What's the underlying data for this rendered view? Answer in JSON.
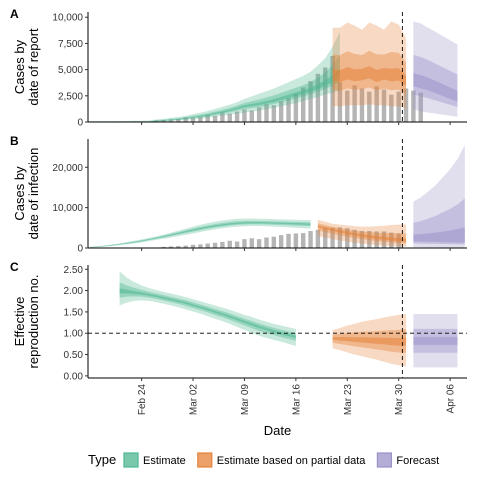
{
  "chart_data": [
    {
      "panel": "A",
      "type": "area",
      "ylabel": [
        "Cases by",
        "date of report"
      ],
      "ylim": [
        0,
        10500
      ],
      "yticks": [
        0,
        2500,
        5000,
        7500,
        10000
      ],
      "ytick_labels": [
        "0",
        "2,500",
        "5,000",
        "7,500",
        "10,000"
      ],
      "x_range": [
        "2020-02-17",
        "2020-04-08"
      ],
      "reported_bars": {
        "x_start": "2020-02-26",
        "values": [
          150,
          200,
          250,
          300,
          450,
          400,
          500,
          700,
          600,
          900,
          800,
          1000,
          1200,
          1100,
          1400,
          1700,
          1600,
          2000,
          2300,
          2700,
          3300,
          3900,
          4600,
          5200,
          6300,
          3800,
          3000,
          3500,
          3200,
          2900,
          3400,
          3100,
          2600,
          2900,
          3200,
          3000,
          2800
        ]
      },
      "series": [
        {
          "name": "Estimate",
          "x_start": "2020-02-17",
          "median": [
            0,
            0,
            0,
            0,
            0,
            0,
            0,
            0,
            0,
            100,
            150,
            200,
            250,
            350,
            450,
            550,
            650,
            800,
            950,
            1100,
            1300,
            1500,
            1600,
            1700,
            1850,
            2000,
            2200,
            2400,
            2600,
            2800,
            3000,
            3300,
            3600,
            4000,
            4500
          ],
          "lower90": [
            0,
            0,
            0,
            0,
            0,
            0,
            0,
            0,
            0,
            30,
            60,
            100,
            150,
            200,
            260,
            320,
            400,
            500,
            600,
            700,
            800,
            900,
            1000,
            1100,
            1200,
            1350,
            1500,
            1650,
            1800,
            2000,
            2200,
            2400,
            2600,
            2800,
            3000
          ],
          "upper90": [
            80,
            80,
            80,
            80,
            100,
            100,
            120,
            120,
            140,
            250,
            300,
            400,
            480,
            600,
            750,
            900,
            1050,
            1250,
            1450,
            1650,
            1900,
            2200,
            2450,
            2700,
            2950,
            3200,
            3500,
            3800,
            4100,
            4400,
            4800,
            5400,
            6100,
            7200,
            8600
          ]
        },
        {
          "name": "Estimate based on partial data",
          "x_start": "2020-03-21",
          "median": [
            4400,
            4200,
            4500,
            4300,
            4400,
            4600,
            4200,
            4500,
            4300,
            4400,
            3800
          ],
          "lower90": [
            1500,
            1500,
            1600,
            1600,
            1600,
            1700,
            1600,
            1600,
            1500,
            1500,
            1300
          ],
          "upper90": [
            9000,
            9000,
            9500,
            9200,
            8800,
            9500,
            9200,
            8800,
            9600,
            9300,
            8000
          ]
        },
        {
          "name": "Forecast",
          "x_start": "2020-04-01",
          "median": [
            3800,
            3600,
            3400,
            3100,
            2800,
            2500,
            2200
          ],
          "lower90": [
            1200,
            1000,
            900,
            800,
            700,
            600,
            500
          ],
          "upper90": [
            9600,
            9400,
            9000,
            8600,
            8200,
            7800,
            7400
          ]
        }
      ]
    },
    {
      "panel": "B",
      "type": "area",
      "ylabel": [
        "Cases by",
        "date of infection"
      ],
      "ylim": [
        0,
        27000
      ],
      "yticks": [
        0,
        10000,
        20000
      ],
      "ytick_labels": [
        "0",
        "10,000",
        "20,000"
      ],
      "x_range": [
        "2020-02-17",
        "2020-04-08"
      ],
      "reported_bars": {
        "x_start": "2020-02-27",
        "values": [
          300,
          400,
          500,
          600,
          800,
          900,
          1100,
          1300,
          1500,
          1800,
          1600,
          2200,
          2400,
          2200,
          2600,
          2800,
          3200,
          3500,
          3600,
          3700,
          4200,
          4500,
          5000,
          5000,
          5100,
          4900,
          4500,
          4200,
          4200,
          4100,
          4100,
          3800,
          3600
        ]
      },
      "series": [
        {
          "name": "Estimate",
          "x_start": "2020-02-17",
          "median": [
            200,
            300,
            500,
            700,
            900,
            1150,
            1450,
            1750,
            2100,
            2450,
            2850,
            3250,
            3650,
            4050,
            4450,
            4800,
            5150,
            5450,
            5700,
            5950,
            6100,
            6200,
            6250,
            6250,
            6200,
            6150,
            6100,
            6050,
            6000,
            5950,
            5900
          ],
          "lower90": [
            120,
            200,
            350,
            500,
            700,
            900,
            1150,
            1400,
            1700,
            2000,
            2300,
            2600,
            2950,
            3250,
            3600,
            3950,
            4300,
            4600,
            4900,
            5100,
            5300,
            5400,
            5450,
            5450,
            5400,
            5300,
            5200,
            5100,
            5000,
            4900,
            4800
          ],
          "upper90": [
            300,
            450,
            650,
            900,
            1150,
            1450,
            1800,
            2150,
            2500,
            2900,
            3350,
            3800,
            4300,
            4800,
            5300,
            5750,
            6150,
            6500,
            6800,
            7050,
            7200,
            7300,
            7300,
            7250,
            7200,
            7150,
            7100,
            7050,
            7000,
            6950,
            6900
          ]
        },
        {
          "name": "Estimate based on partial data",
          "x_start": "2020-03-19",
          "median": [
            5400,
            5000,
            4600,
            4200,
            3800,
            3400,
            3100,
            2800,
            2500,
            2300,
            2100,
            1900,
            1700
          ],
          "lower90": [
            3000,
            2600,
            2200,
            1900,
            1600,
            1300,
            1100,
            900,
            750,
            600,
            500,
            400,
            300
          ],
          "upper90": [
            7000,
            6500,
            6000,
            5800,
            5600,
            5400,
            5300,
            5300,
            5400,
            5500,
            5700,
            5800,
            5800
          ]
        },
        {
          "name": "Forecast",
          "x_start": "2020-04-01",
          "median": [
            1900,
            1850,
            1800,
            1750,
            1700,
            1650,
            1600,
            1550
          ],
          "lower90": [
            200,
            180,
            160,
            140,
            120,
            100,
            90,
            80
          ],
          "upper90": [
            11500,
            12500,
            14000,
            15500,
            17500,
            19500,
            22000,
            25500
          ]
        }
      ]
    },
    {
      "panel": "C",
      "type": "area",
      "ylabel": [
        "Effective",
        "reproduction no."
      ],
      "ylim": [
        -0.05,
        2.6
      ],
      "yticks": [
        0.0,
        0.5,
        1.0,
        1.5,
        2.0,
        2.5
      ],
      "ytick_labels": [
        "0.00",
        "0.50",
        "1.00",
        "1.50",
        "2.00",
        "2.50"
      ],
      "hline": 1.0,
      "x_range": [
        "2020-02-17",
        "2020-04-08"
      ],
      "series": [
        {
          "name": "Estimate",
          "x_start": "2020-02-21",
          "median": [
            1.98,
            1.97,
            1.95,
            1.93,
            1.9,
            1.87,
            1.83,
            1.79,
            1.75,
            1.71,
            1.66,
            1.61,
            1.56,
            1.5,
            1.45,
            1.39,
            1.33,
            1.27,
            1.21,
            1.15,
            1.1,
            1.05,
            1.0,
            0.96,
            0.92
          ],
          "lower90": [
            1.65,
            1.72,
            1.76,
            1.77,
            1.76,
            1.73,
            1.69,
            1.65,
            1.61,
            1.56,
            1.51,
            1.46,
            1.4,
            1.34,
            1.28,
            1.22,
            1.15,
            1.08,
            1.01,
            0.94,
            0.89,
            0.84,
            0.8,
            0.75,
            0.7
          ],
          "upper90": [
            2.45,
            2.3,
            2.2,
            2.12,
            2.06,
            2.01,
            1.97,
            1.93,
            1.89,
            1.85,
            1.8,
            1.75,
            1.7,
            1.65,
            1.6,
            1.55,
            1.49,
            1.43,
            1.38,
            1.32,
            1.27,
            1.22,
            1.18,
            1.14,
            1.1
          ]
        },
        {
          "name": "Estimate based on partial data",
          "x_start": "2020-03-21",
          "median": [
            0.88,
            0.87,
            0.86,
            0.85,
            0.84,
            0.83,
            0.82,
            0.81,
            0.8,
            0.79,
            0.8
          ],
          "lower90": [
            0.65,
            0.6,
            0.55,
            0.5,
            0.46,
            0.42,
            0.38,
            0.33,
            0.28,
            0.25,
            0.22
          ],
          "upper90": [
            1.08,
            1.12,
            1.18,
            1.22,
            1.27,
            1.3,
            1.33,
            1.37,
            1.4,
            1.43,
            1.45
          ]
        },
        {
          "name": "Forecast",
          "x_start": "2020-04-01",
          "median": [
            0.82,
            0.82,
            0.82,
            0.82,
            0.82,
            0.82,
            0.82
          ],
          "lower90": [
            0.2,
            0.2,
            0.2,
            0.2,
            0.2,
            0.2,
            0.2
          ],
          "upper90": [
            1.45,
            1.45,
            1.45,
            1.45,
            1.45,
            1.45,
            1.45
          ]
        }
      ]
    }
  ],
  "shared": {
    "x_axis_label": "Date",
    "x_tick_labels": [
      "Feb 24",
      "Mar 02",
      "Mar 09",
      "Mar 16",
      "Mar 23",
      "Mar 30",
      "Apr 06"
    ],
    "x_tick_dates": [
      "2020-02-24",
      "2020-03-02",
      "2020-03-09",
      "2020-03-16",
      "2020-03-23",
      "2020-03-30",
      "2020-04-06"
    ],
    "forecast_start_line": "2020-03-31"
  },
  "legend": {
    "title": "Type",
    "items": [
      {
        "label": "Estimate",
        "color": "#4db690"
      },
      {
        "label": "Estimate based on partial data",
        "color": "#e6823a"
      },
      {
        "label": "Forecast",
        "color": "#9b92c8"
      }
    ],
    "position": "bottom"
  },
  "colors": {
    "Estimate": "#4db690",
    "Estimate based on partial data": "#e6823a",
    "Forecast": "#9b92c8",
    "bars": "#b5b5b5"
  }
}
